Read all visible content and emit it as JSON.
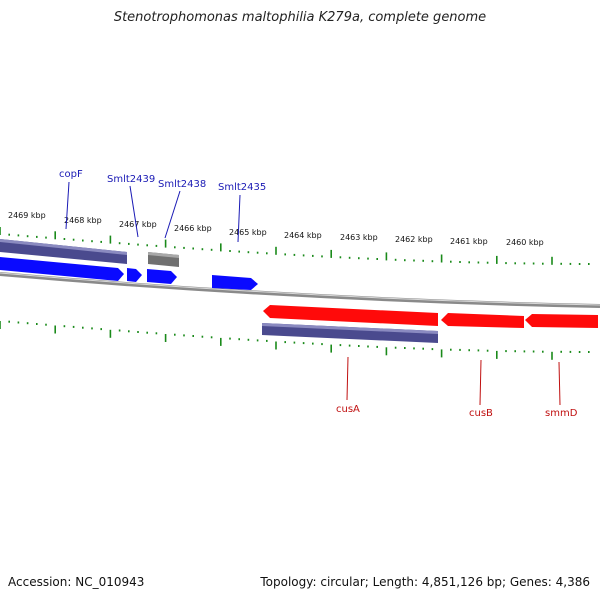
{
  "title": "Stenotrophomonas maltophilia K279a, complete genome",
  "footer": {
    "accession": "Accession: NC_010943",
    "stats": "Topology: circular; Length: 4,851,126 bp; Genes: 4,386"
  },
  "colors": {
    "forward_gene": "#0a0aff",
    "reverse_gene": "#ff0a0a",
    "cds_bar": "#4a4a8e",
    "pseudo": "#707070",
    "tick": "#1a8a1a",
    "backbone": "#8a8a8a",
    "label_blue": "#1a1ab5",
    "label_red": "#c01010"
  },
  "scale_labels": [
    "2469 kbp",
    "2468 kbp",
    "2467 kbp",
    "2466 kbp",
    "2465 kbp",
    "2464 kbp",
    "2463 kbp",
    "2462 kbp",
    "2461 kbp",
    "2460 kbp"
  ],
  "gene_labels_top": [
    "copF",
    "Smlt2439",
    "Smlt2438",
    "Smlt2435"
  ],
  "gene_labels_bottom": [
    "cusA",
    "cusB",
    "smmD"
  ]
}
